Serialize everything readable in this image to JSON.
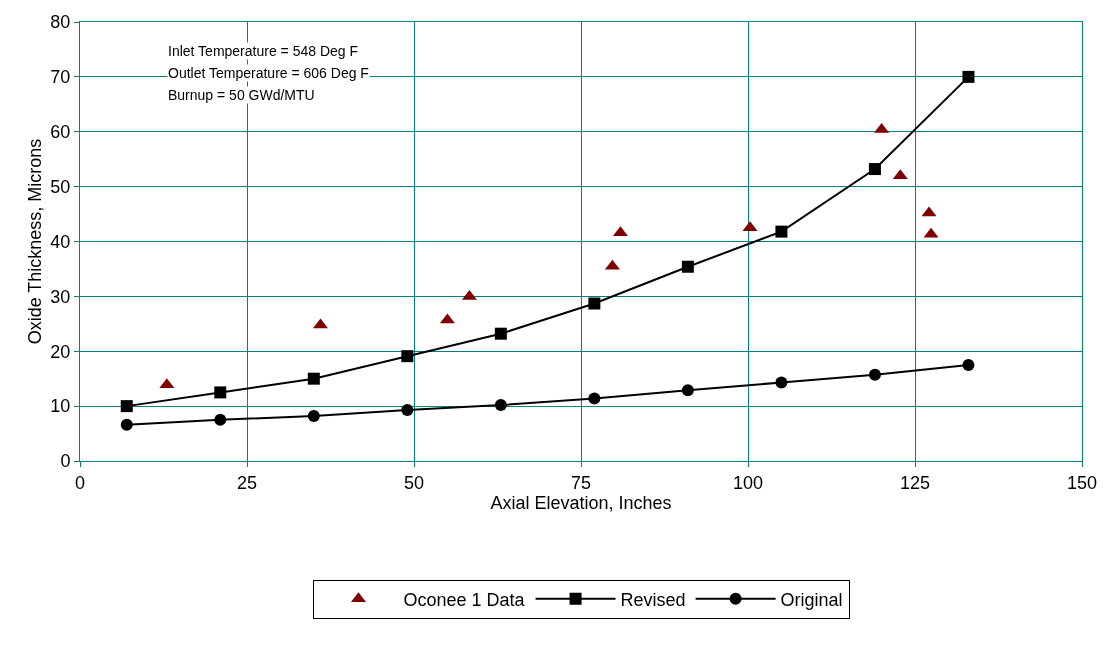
{
  "chart_data": {
    "type": "line",
    "xlabel": "Axial Elevation, Inches",
    "ylabel": "Oxide Thickness, Microns",
    "xlim": [
      0,
      150
    ],
    "xticks": [
      0,
      25,
      50,
      75,
      100,
      125,
      150
    ],
    "ylim": [
      0,
      80
    ],
    "yticks": [
      0,
      10,
      20,
      30,
      40,
      50,
      60,
      70,
      80
    ],
    "grid": true,
    "legend": "bottom",
    "annotations": [
      "Inlet Temperature = 548 Deg F",
      "Outlet Temperature = 606 Deg F",
      "Burnup = 50 GWd/MTU"
    ],
    "series": [
      {
        "name": "Oconee 1 Data",
        "type": "scatter",
        "marker": "triangle",
        "color": "#800000",
        "x": [
          13,
          36,
          55,
          58.3,
          79.7,
          80.9,
          100.3,
          120,
          122.8,
          127.1,
          127.4
        ],
        "values": [
          13.9,
          24.8,
          25.7,
          30,
          35.5,
          41.6,
          42.5,
          60.4,
          52,
          45.2,
          41.3
        ]
      },
      {
        "name": "Revised",
        "marker": "square",
        "line_style": "solid",
        "color": "#000000",
        "x": [
          7,
          21,
          35,
          49,
          63,
          77,
          91,
          105,
          119,
          133
        ],
        "values": [
          10,
          12.5,
          15,
          19.1,
          23.2,
          28.7,
          35.4,
          41.8,
          53.2,
          70
        ]
      },
      {
        "name": "Original",
        "marker": "circle",
        "line_style": "solid",
        "color": "#000000",
        "x": [
          7,
          21,
          35,
          49,
          63,
          77,
          91,
          105,
          119,
          133
        ],
        "values": [
          6.6,
          7.5,
          8.2,
          9.3,
          10.2,
          11.4,
          12.9,
          14.3,
          15.7,
          17.5
        ]
      }
    ]
  }
}
